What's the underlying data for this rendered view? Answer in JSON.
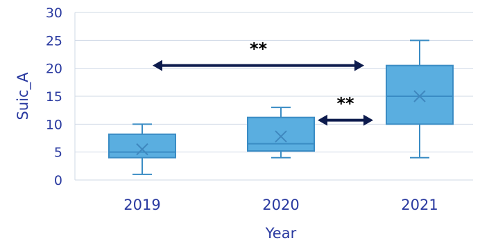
{
  "colors": {
    "box_fill": "#5aaee0",
    "box_stroke": "#3a8cc4",
    "whisker": "#3a8cc4",
    "mean_marker": "#3f88bf",
    "grid": "#cfd8e6",
    "text": "#2a3aa0",
    "arrow": "#0d1b4d"
  },
  "chart_data": {
    "type": "box",
    "title": "",
    "xlabel": "Year",
    "ylabel": "Suic_A",
    "ylim": [
      0,
      30
    ],
    "yticks": [
      0,
      5,
      10,
      15,
      20,
      25,
      30
    ],
    "ytick_labels": [
      "0",
      "5",
      "10",
      "15",
      "20",
      "25",
      "30"
    ],
    "grid": true,
    "categories": [
      "2019",
      "2020",
      "2021"
    ],
    "boxes": [
      {
        "category": "2019",
        "min": 1,
        "q1": 4,
        "median": 5,
        "q3": 8.2,
        "max": 10,
        "mean": 5.5
      },
      {
        "category": "2020",
        "min": 4,
        "q1": 5.2,
        "median": 6.5,
        "q3": 11.2,
        "max": 13,
        "mean": 7.8
      },
      {
        "category": "2021",
        "min": 4,
        "q1": 10,
        "median": 15,
        "q3": 20.5,
        "max": 25,
        "mean": 15
      }
    ],
    "significance": [
      {
        "from": "2019",
        "to": "2021",
        "y": 20.5,
        "label": "**"
      },
      {
        "from": "2020",
        "to": "2021",
        "y": 10.7,
        "label": "**"
      }
    ]
  }
}
